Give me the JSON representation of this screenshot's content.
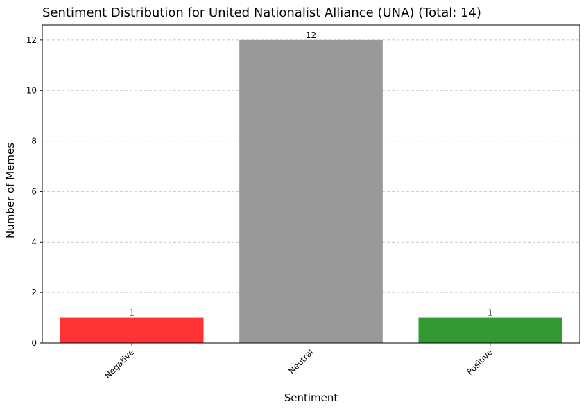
{
  "chart_data": {
    "type": "bar",
    "title": "Sentiment Distribution for United Nationalist Alliance (UNA) (Total: 14)",
    "xlabel": "Sentiment",
    "ylabel": "Number of Memes",
    "categories": [
      "Negative",
      "Neutral",
      "Positive"
    ],
    "values": [
      1,
      12,
      1
    ],
    "data_labels": [
      "1",
      "12",
      "1"
    ],
    "colors": [
      "#ff3333",
      "#999999",
      "#339933"
    ],
    "ylim": [
      0,
      12.6
    ],
    "yticks": [
      0,
      2,
      4,
      6,
      8,
      10,
      12
    ],
    "grid": "y-dashed",
    "grid_color": "#c8c8c8",
    "x_tick_rotation": 45,
    "legend": "none"
  }
}
